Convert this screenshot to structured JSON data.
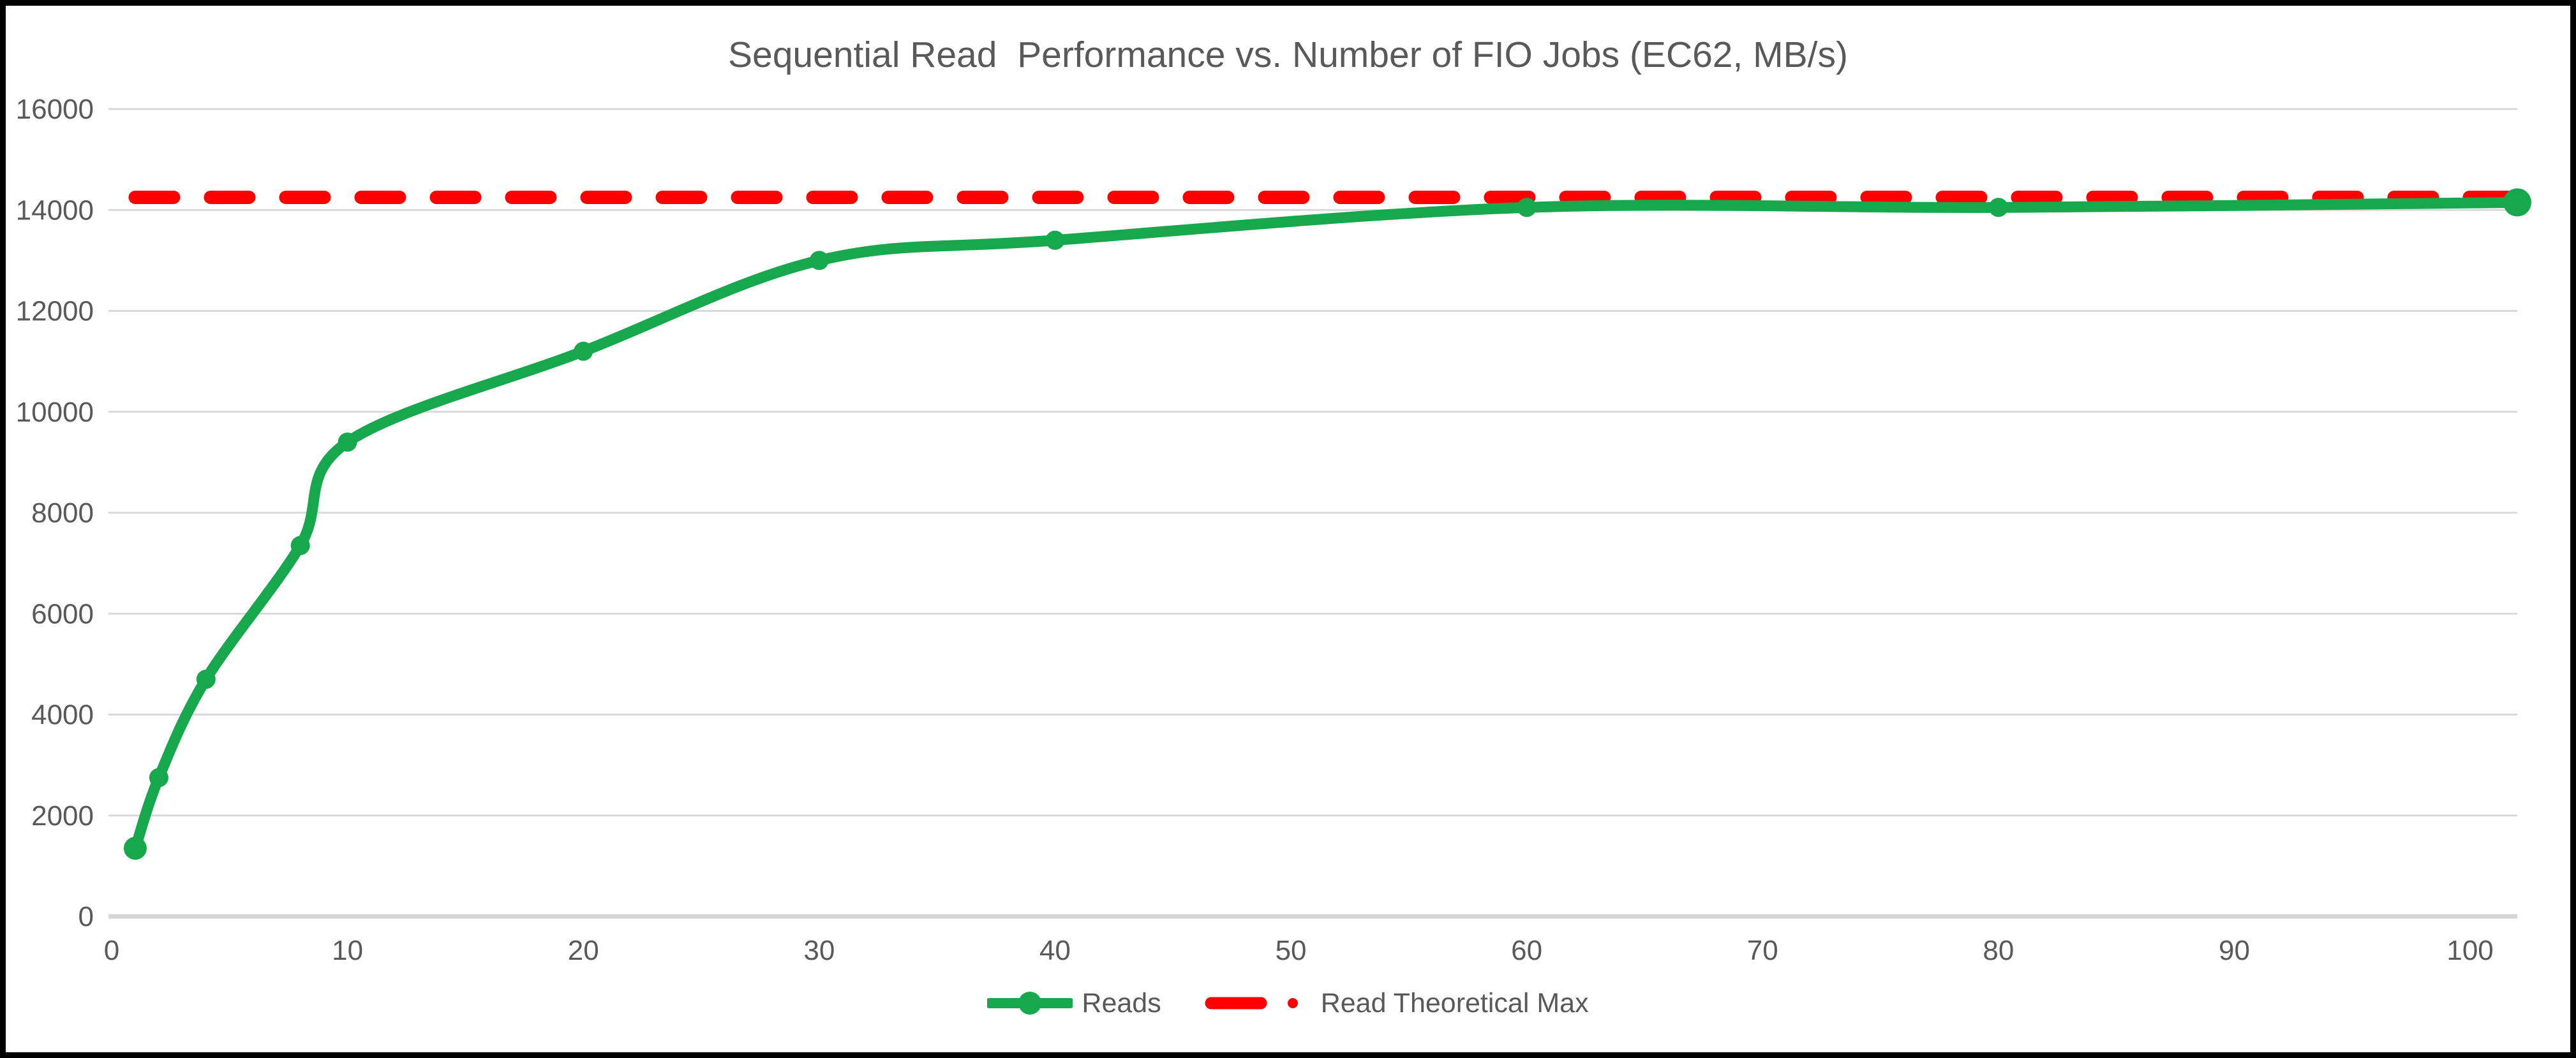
{
  "chart": {
    "title": "Sequential Read  Performance vs. Number of FIO Jobs (EC62, MB/s)"
  },
  "chart_data": {
    "type": "line",
    "title": "Sequential Read  Performance vs. Number of FIO Jobs (EC62, MB/s)",
    "xlabel": "",
    "ylabel": "",
    "xlim": [
      0,
      102
    ],
    "ylim": [
      0,
      16000
    ],
    "x_ticks": [
      0,
      10,
      20,
      30,
      40,
      50,
      60,
      70,
      80,
      90,
      100
    ],
    "y_ticks": [
      0,
      2000,
      4000,
      6000,
      8000,
      10000,
      12000,
      14000,
      16000
    ],
    "grid": "horizontal",
    "legend_position": "bottom-center",
    "x": [
      1,
      2,
      4,
      8,
      10,
      20,
      30,
      40,
      60,
      80,
      102
    ],
    "series": [
      {
        "name": "Reads",
        "type": "smooth-line",
        "marker": "circle",
        "color": "#17a74c",
        "values": [
          1350,
          2750,
          4700,
          7350,
          9400,
          11200,
          13000,
          13400,
          14050,
          14050,
          14150
        ]
      },
      {
        "name": "Read Theoretical Max",
        "type": "horizontal-line",
        "line_style": "dashed",
        "color": "#fe0000",
        "value": 14250
      }
    ],
    "colors": {
      "text": "#595959",
      "gridline": "#d9d9d9",
      "axis_line": "#d6d6d6",
      "background": "#ffffff",
      "frame_border": "#000000"
    }
  }
}
